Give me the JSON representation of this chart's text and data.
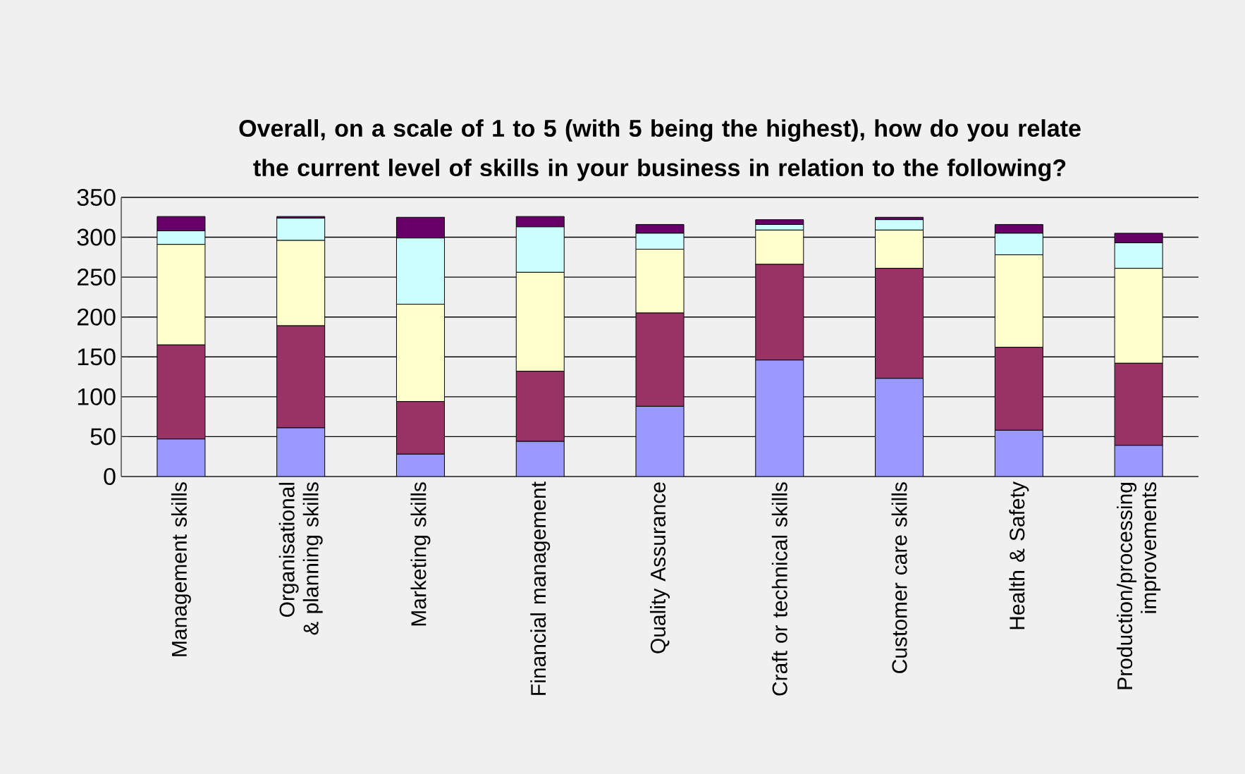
{
  "chart_data": {
    "type": "bar",
    "stacked": true,
    "title": "Overall, on a scale of 1 to 5 (with 5 being the highest), how do you relate the current level of skills in your business in relation to the following?",
    "categories": [
      "Management skills",
      "Organisational & planning skills",
      "Marketing skills",
      "Financial management",
      "Quality Assurance",
      "Craft or technical skills",
      "Customer care skills",
      "Health & Safety",
      "Production/processing improvements"
    ],
    "series": [
      {
        "color": "#9999ff",
        "values": [
          47,
          61,
          28,
          44,
          88,
          146,
          123,
          58,
          39
        ]
      },
      {
        "color": "#993366",
        "values": [
          118,
          128,
          66,
          88,
          117,
          120,
          138,
          104,
          103
        ]
      },
      {
        "color": "#ffffcc",
        "values": [
          126,
          107,
          122,
          124,
          80,
          43,
          48,
          116,
          119
        ]
      },
      {
        "color": "#ccffff",
        "values": [
          17,
          28,
          83,
          57,
          20,
          7,
          13,
          27,
          32
        ]
      },
      {
        "color": "#660066",
        "values": [
          18,
          2,
          26,
          13,
          11,
          6,
          3,
          11,
          12
        ]
      }
    ],
    "ylim": [
      0,
      350
    ],
    "yticks": [
      0,
      50,
      100,
      150,
      200,
      250,
      300,
      350
    ],
    "grid": "y"
  }
}
